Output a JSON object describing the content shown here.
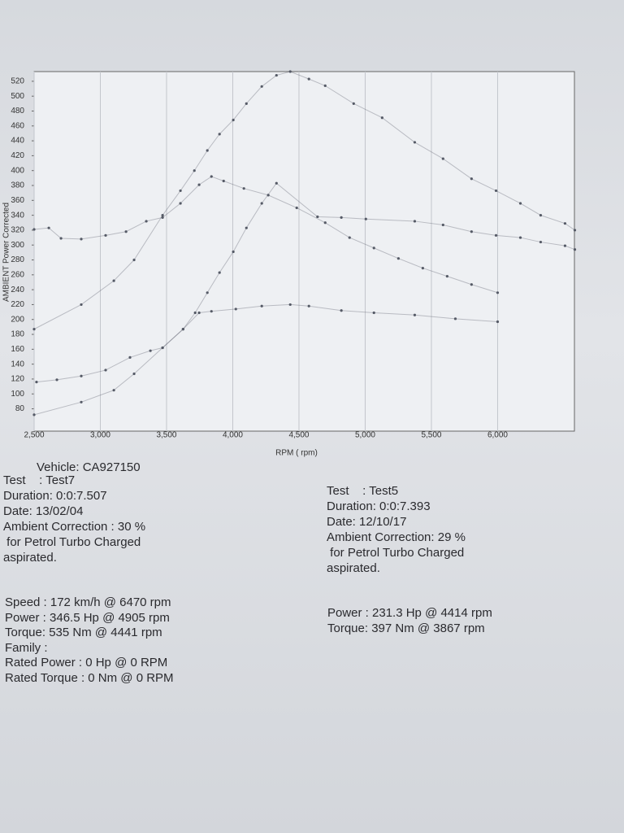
{
  "chart_data": {
    "type": "line",
    "x_label": "RPM ( rpm)",
    "y_label": "AMBIENT Power Corrected",
    "xlim": [
      2500,
      6580
    ],
    "ylim": [
      50,
      533
    ],
    "xticks": [
      {
        "value": 2500,
        "label": "2,500"
      },
      {
        "value": 3000,
        "label": "3,000"
      },
      {
        "value": 3500,
        "label": "3,500"
      },
      {
        "value": 4000,
        "label": "4,000"
      },
      {
        "value": 4500,
        "label": "4,500"
      },
      {
        "value": 5000,
        "label": "5,000"
      },
      {
        "value": 5500,
        "label": "5,500"
      },
      {
        "value": 6000,
        "label": "6,000"
      }
    ],
    "yticks": [
      80,
      100,
      120,
      140,
      160,
      180,
      200,
      220,
      240,
      260,
      280,
      300,
      320,
      340,
      360,
      380,
      400,
      420,
      440,
      460,
      480,
      500,
      520
    ],
    "grid": true,
    "series": [
      {
        "color": "#555a66",
        "x": [
          2500,
          2856,
          3102,
          3255,
          3470,
          3605,
          3710,
          3808,
          3900,
          4004,
          4103,
          4219,
          4330,
          4434,
          4575,
          4698,
          4913,
          5128,
          5374,
          5588,
          5803,
          5988,
          6172,
          6325,
          6509,
          6583
        ],
        "values": [
          187,
          220,
          252,
          280,
          340,
          373,
          400,
          427,
          449,
          468,
          490,
          513,
          528,
          533,
          523,
          514,
          490,
          471,
          438,
          416,
          389,
          373,
          356,
          340,
          329,
          320
        ]
      },
      {
        "color": "#555a66",
        "x": [
          2500,
          2856,
          3102,
          3255,
          3470,
          3625,
          3716,
          3808,
          3900,
          4004,
          4103,
          4219,
          4330,
          4640,
          4820,
          5005,
          5374,
          5588,
          5803,
          5988,
          6172,
          6325,
          6509,
          6583
        ],
        "values": [
          72,
          89,
          105,
          127,
          162,
          187,
          209,
          236,
          263,
          291,
          323,
          356,
          383,
          338,
          337,
          335,
          332,
          327,
          318,
          313,
          310,
          304,
          299,
          294
        ]
      },
      {
        "color": "#555a66",
        "x": [
          2500,
          2611,
          2703,
          2856,
          3040,
          3194,
          3347,
          3470,
          3605,
          3746,
          3839,
          3931,
          4084,
          4268,
          4483,
          4698,
          4882,
          5066,
          5251,
          5435,
          5619,
          5803,
          6000
        ],
        "values": [
          321,
          323,
          309,
          308,
          313,
          318,
          332,
          337,
          356,
          381,
          392,
          386,
          376,
          367,
          350,
          330,
          310,
          296,
          282,
          269,
          258,
          247,
          236
        ]
      },
      {
        "color": "#555a66",
        "x": [
          2518,
          2672,
          2856,
          3040,
          3224,
          3378,
          3470,
          3625,
          3746,
          3839,
          4023,
          4219,
          4434,
          4575,
          4820,
          5066,
          5374,
          5681,
          6000
        ],
        "values": [
          116,
          119,
          124,
          132,
          149,
          158,
          162,
          187,
          209,
          211,
          214,
          218,
          220,
          218,
          212,
          209,
          206,
          201,
          197
        ]
      }
    ]
  },
  "report": {
    "vehicle": "Vehicle: CA927150",
    "left": [
      "Test    : Test7",
      "Duration: 0:0:7.507",
      "Date: 13/02/04",
      "Ambient Correction : 30 %",
      " for Petrol Turbo Charged",
      "aspirated."
    ],
    "right": [
      "Test    : Test5",
      "Duration: 0:0:7.393",
      "Date: 12/10/17",
      "Ambient Correction: 29 %",
      " for Petrol Turbo Charged",
      "aspirated."
    ],
    "left_stats": [
      "Speed : 172 km/h @ 6470 rpm",
      "Power : 346.5 Hp @ 4905 rpm",
      "Torque: 535 Nm @ 4441 rpm",
      "Family :",
      "Rated Power : 0 Hp @ 0 RPM",
      "Rated Torque : 0 Nm @ 0 RPM"
    ],
    "right_stats": [
      "Power : 231.3 Hp @ 4414 rpm",
      "Torque: 397 Nm @ 3867 rpm"
    ]
  }
}
